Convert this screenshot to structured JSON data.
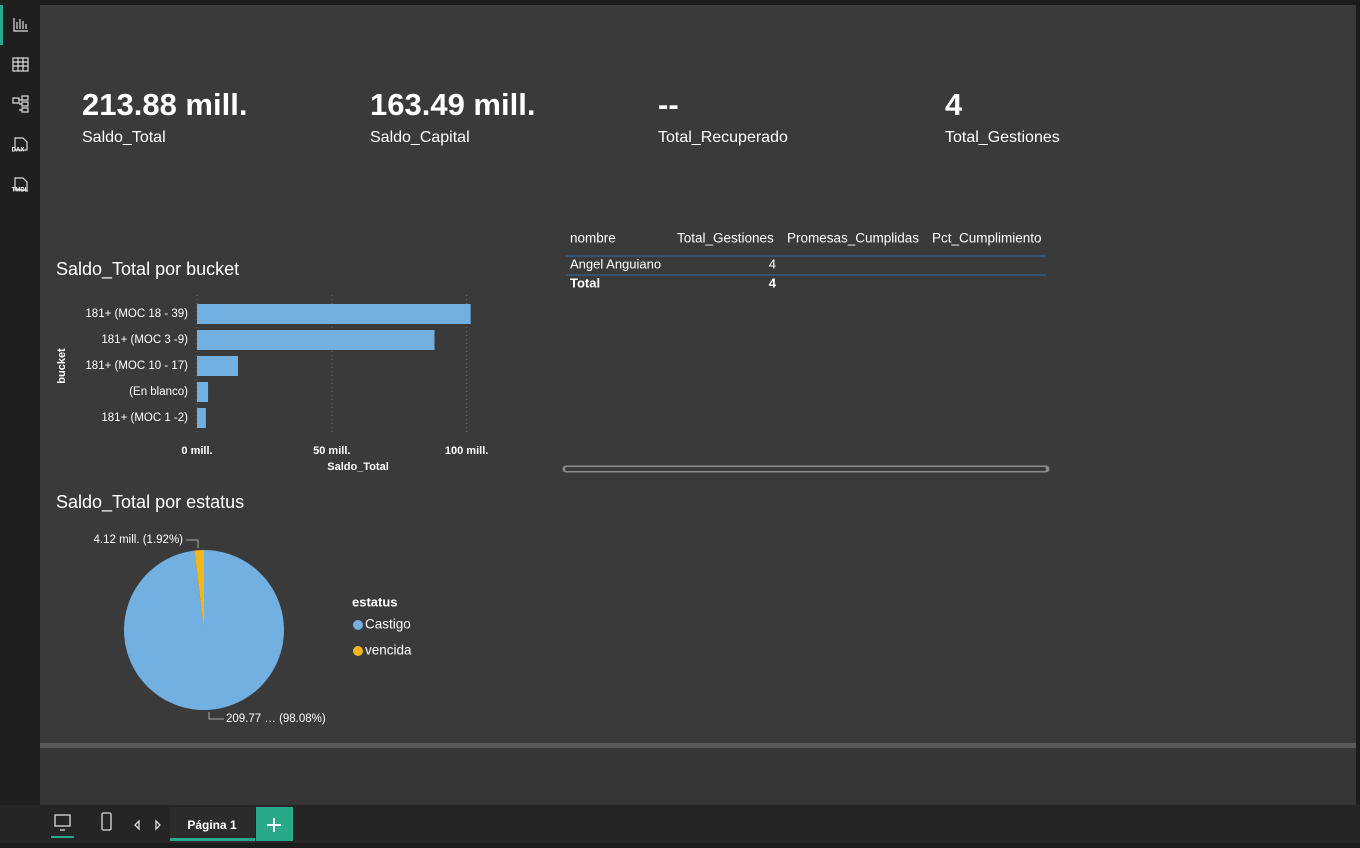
{
  "sidebar": {
    "icons": [
      "DAX",
      "TMDL"
    ]
  },
  "cards": [
    {
      "value": "213.88 mill.",
      "label": "Saldo_Total"
    },
    {
      "value": "163.49 mill.",
      "label": "Saldo_Capital"
    },
    {
      "value": "--",
      "label": "Total_Recuperado"
    },
    {
      "value": 4,
      "label": "Total_Gestiones"
    }
  ],
  "chart_data": [
    {
      "type": "bar",
      "orientation": "horizontal",
      "title": "Saldo_Total por bucket",
      "x_label": "Saldo_Total",
      "y_label": "bucket",
      "categories": [
        "181+ (MOC 18 - 39)",
        "181+ (MOC 3 -9)",
        "181+ (MOC 10 - 17)",
        "(En blanco)",
        "181+ (MOC 1 -2)"
      ],
      "values": [
        101.5,
        88.1,
        15.2,
        4.1,
        3.3
      ],
      "color": "#71b0e0",
      "xlim": [
        0,
        102
      ],
      "xticks": [
        {
          "value": 0,
          "label": "0 mill."
        },
        {
          "value": 50,
          "label": "50 mill."
        },
        {
          "value": 100,
          "label": "100 mill."
        }
      ],
      "grid": true
    },
    {
      "type": "pie",
      "title": "Saldo_Total por estatus",
      "legend_title": "estatus",
      "categories": [
        "Castigo",
        "vencida"
      ],
      "values": [
        209.77,
        4.12
      ],
      "value_labels": [
        "209.77 … (98.08%)",
        "4.12 mill. (1.92%)"
      ],
      "colors": [
        "#71b0e0",
        "#f2b51a"
      ]
    }
  ],
  "table": {
    "columns": [
      "nombre",
      "Total_Gestiones",
      "Promesas_Cumplidas",
      "Pct_Cumplimiento"
    ],
    "rows": [
      [
        "Angel Anguiano",
        4,
        null,
        null
      ]
    ],
    "total": [
      "Total",
      4,
      null,
      null
    ]
  },
  "footer": {
    "page_tab": "Página 1"
  }
}
